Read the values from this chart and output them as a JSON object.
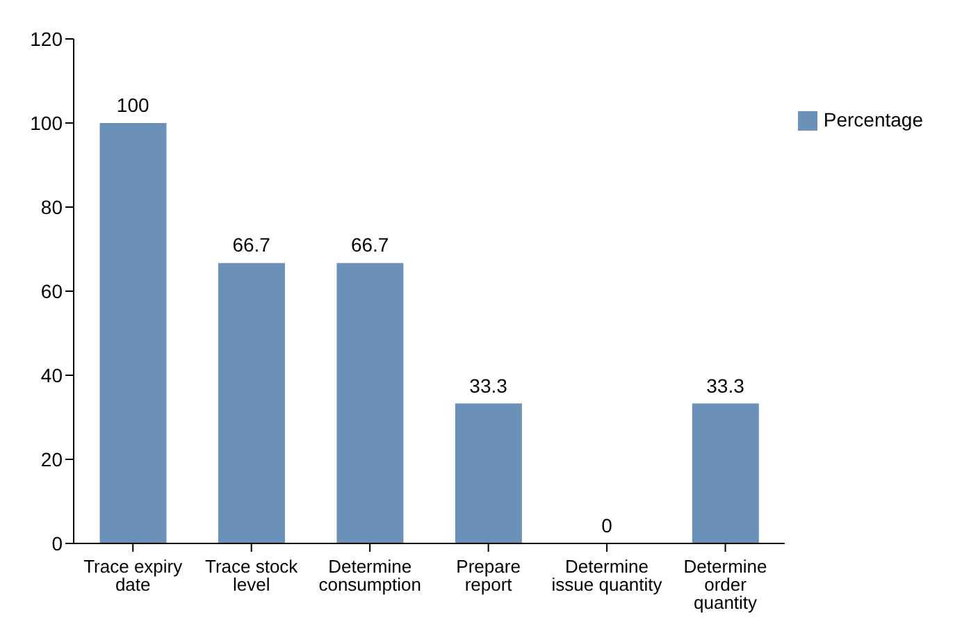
{
  "chart_data": {
    "type": "bar",
    "categories": [
      "Trace expiry date",
      "Trace stock level",
      "Determine consumption",
      "Prepare report",
      "Determine issue quantity",
      "Determine order quantity"
    ],
    "series": [
      {
        "name": "Percentage",
        "color": "#6c91b8",
        "values": [
          100,
          66.7,
          66.7,
          33.3,
          0,
          33.3
        ]
      }
    ],
    "ylim": [
      0,
      120
    ],
    "yticks": [
      0,
      20,
      40,
      60,
      80,
      100,
      120
    ],
    "grid": false,
    "legend": "top right",
    "data_labels": true
  }
}
